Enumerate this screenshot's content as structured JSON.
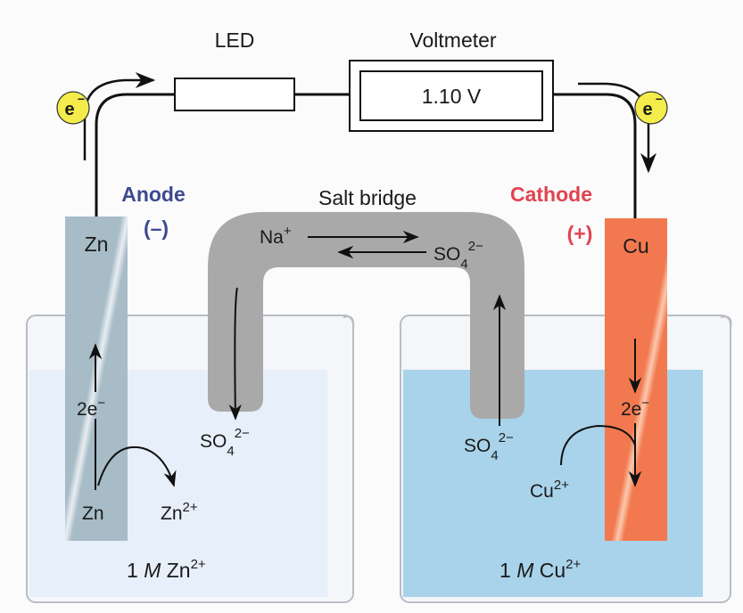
{
  "labels": {
    "led": "LED",
    "voltmeter": "Voltmeter",
    "voltmeter_reading": "1.10 V",
    "salt_bridge": "Salt bridge",
    "anode": "Anode",
    "anode_sign": "(–)",
    "cathode": "Cathode",
    "cathode_sign": "(+)"
  },
  "electrons": {
    "symbol": "e",
    "charge": "−",
    "transfer": "2e",
    "transfer_charge": "−"
  },
  "anode_side": {
    "electrode": "Zn",
    "atom": "Zn",
    "ion": "Zn",
    "ion_charge": "2+",
    "sulfate": "SO",
    "sulfate_sub": "4",
    "sulfate_charge": "2−",
    "solution_conc": "1 ",
    "solution_unit": "M",
    "solution_ion": " Zn",
    "solution_charge": "2+"
  },
  "cathode_side": {
    "electrode": "Cu",
    "ion": "Cu",
    "ion_charge": "2+",
    "sulfate": "SO",
    "sulfate_sub": "4",
    "sulfate_charge": "2−",
    "solution_conc": "1 ",
    "solution_unit": "M",
    "solution_ion": " Cu",
    "solution_charge": "2+"
  },
  "bridge_ions": {
    "cation": "Na",
    "cation_charge": "+",
    "anion": "SO",
    "anion_sub": "4",
    "anion_charge": "2−"
  },
  "colors": {
    "anode_label": "#3d4a8f",
    "cathode_label": "#e2434f",
    "zinc": "#a7bcc6",
    "copper": "#f2794f",
    "salt_bridge": "#a9a9a9",
    "zn_solution": "#e6effa",
    "cu_solution": "#a8d3ea",
    "electron": "#f3ec4a"
  }
}
